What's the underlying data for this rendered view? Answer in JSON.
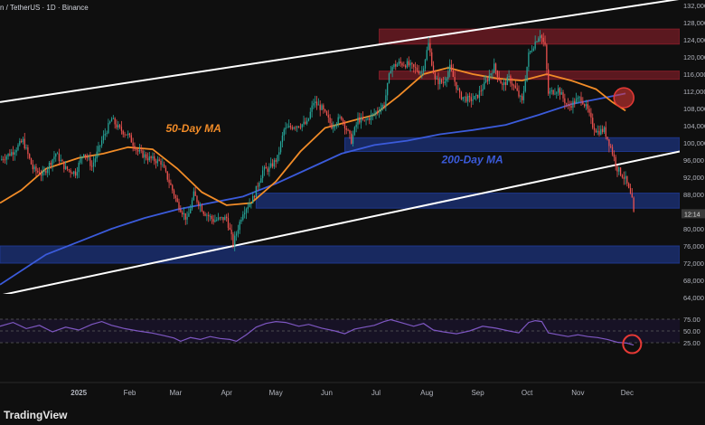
{
  "header": {
    "symbol_text": "n / TetherUS · 1D · Binance"
  },
  "watermark": "TradingView",
  "colors": {
    "background": "#0f0f0f",
    "up": "#26a69a",
    "down": "#ef5350",
    "ma50": "#f28c28",
    "ma200": "#3b5bdb",
    "channel": "#ffffff",
    "resistance_zone": "#8b1e2a",
    "support_zone": "#1f3a93",
    "rsi_line": "#7e57c2",
    "highlight_circle": "#e53935"
  },
  "chart_data": {
    "type": "candlestick",
    "timeframe": "1D",
    "y_range": [
      60000,
      132000
    ],
    "y_ticks": [
      "132,000",
      "128,000",
      "124,000",
      "120,000",
      "116,000",
      "112,000",
      "108,000",
      "104,000",
      "100,000",
      "96,000",
      "92,000",
      "88,000",
      "84,000",
      "80,000",
      "76,000",
      "72,000",
      "68,000",
      "64,000"
    ],
    "current_price_tag": "12:14",
    "x_ticks": [
      "2025",
      "Feb",
      "Mar",
      "Apr",
      "May",
      "Jun",
      "Jul",
      "Aug",
      "Sep",
      "Oct",
      "Nov",
      "Dec"
    ],
    "x_tick_days": [
      0,
      31,
      59,
      90,
      120,
      151,
      181,
      212,
      243,
      273,
      304,
      334
    ],
    "x_range_days": [
      -48,
      366
    ],
    "price_points": [
      [
        -48,
        96000
      ],
      [
        -40,
        98000
      ],
      [
        -34,
        100500
      ],
      [
        -28,
        94000
      ],
      [
        -22,
        92500
      ],
      [
        -14,
        97500
      ],
      [
        -8,
        94000
      ],
      [
        -2,
        93000
      ],
      [
        3,
        98000
      ],
      [
        8,
        94500
      ],
      [
        14,
        100500
      ],
      [
        20,
        105500
      ],
      [
        24,
        103500
      ],
      [
        30,
        101800
      ],
      [
        36,
        98000
      ],
      [
        42,
        96500
      ],
      [
        50,
        95500
      ],
      [
        56,
        90000
      ],
      [
        60,
        86000
      ],
      [
        66,
        82000
      ],
      [
        70,
        88000
      ],
      [
        76,
        84000
      ],
      [
        82,
        82000
      ],
      [
        90,
        82500
      ],
      [
        94,
        76500
      ],
      [
        100,
        84000
      ],
      [
        106,
        87000
      ],
      [
        112,
        93500
      ],
      [
        116,
        94000
      ],
      [
        121,
        96500
      ],
      [
        125,
        103000
      ],
      [
        131,
        104000
      ],
      [
        139,
        104500
      ],
      [
        143,
        109500
      ],
      [
        148,
        108000
      ],
      [
        154,
        104000
      ],
      [
        160,
        106000
      ],
      [
        166,
        100500
      ],
      [
        170,
        105500
      ],
      [
        174,
        105000
      ],
      [
        180,
        106800
      ],
      [
        186,
        109000
      ],
      [
        190,
        117500
      ],
      [
        195,
        118500
      ],
      [
        200,
        118300
      ],
      [
        205,
        117200
      ],
      [
        209,
        116500
      ],
      [
        213,
        123000
      ],
      [
        217,
        114500
      ],
      [
        222,
        114000
      ],
      [
        226,
        117500
      ],
      [
        232,
        111000
      ],
      [
        238,
        110000
      ],
      [
        242,
        110500
      ],
      [
        247,
        113500
      ],
      [
        253,
        117800
      ],
      [
        258,
        113200
      ],
      [
        262,
        115000
      ],
      [
        266,
        112500
      ],
      [
        270,
        109500
      ],
      [
        274,
        120500
      ],
      [
        278,
        123500
      ],
      [
        281,
        125500
      ],
      [
        284,
        122300
      ],
      [
        286,
        111500
      ],
      [
        292,
        112500
      ],
      [
        298,
        108300
      ],
      [
        302,
        109600
      ],
      [
        306,
        110500
      ],
      [
        310,
        107500
      ],
      [
        313,
        104000
      ],
      [
        316,
        102600
      ],
      [
        320,
        103000
      ],
      [
        324,
        99000
      ],
      [
        328,
        94000
      ],
      [
        333,
        91500
      ],
      [
        337,
        86500
      ],
      [
        338,
        83500
      ]
    ],
    "ma50_points": [
      [
        -48,
        86000
      ],
      [
        -35,
        89000
      ],
      [
        -20,
        94000
      ],
      [
        0,
        96500
      ],
      [
        15,
        97500
      ],
      [
        30,
        99000
      ],
      [
        45,
        98500
      ],
      [
        60,
        94000
      ],
      [
        75,
        88500
      ],
      [
        90,
        85500
      ],
      [
        105,
        86000
      ],
      [
        120,
        91000
      ],
      [
        135,
        98000
      ],
      [
        150,
        103500
      ],
      [
        165,
        105000
      ],
      [
        180,
        106500
      ],
      [
        195,
        111000
      ],
      [
        210,
        116000
      ],
      [
        225,
        117500
      ],
      [
        240,
        116000
      ],
      [
        255,
        115000
      ],
      [
        270,
        114500
      ],
      [
        285,
        116000
      ],
      [
        300,
        114500
      ],
      [
        315,
        112500
      ],
      [
        325,
        109500
      ],
      [
        333,
        107500
      ]
    ],
    "ma200_points": [
      [
        -48,
        67000
      ],
      [
        -20,
        74000
      ],
      [
        0,
        77000
      ],
      [
        20,
        80000
      ],
      [
        40,
        82500
      ],
      [
        60,
        84500
      ],
      [
        80,
        86000
      ],
      [
        100,
        87500
      ],
      [
        120,
        90500
      ],
      [
        140,
        94000
      ],
      [
        160,
        97500
      ],
      [
        180,
        99500
      ],
      [
        200,
        100500
      ],
      [
        220,
        102000
      ],
      [
        240,
        103000
      ],
      [
        260,
        104200
      ],
      [
        280,
        106500
      ],
      [
        300,
        109000
      ],
      [
        320,
        110500
      ],
      [
        333,
        111500
      ]
    ],
    "channel_upper": [
      [
        -48,
        109500
      ],
      [
        366,
        133500
      ]
    ],
    "channel_lower": [
      [
        -48,
        64500
      ],
      [
        366,
        98000
      ]
    ],
    "zones": [
      {
        "name": "resistance-upper",
        "kind": "resistance",
        "from_day": 183,
        "to_day": 366,
        "y_low": 123000,
        "y_high": 126500
      },
      {
        "name": "resistance-lower",
        "kind": "resistance",
        "from_day": 183,
        "to_day": 366,
        "y_low": 114800,
        "y_high": 116700
      },
      {
        "name": "support-mid",
        "kind": "support",
        "from_day": 162,
        "to_day": 366,
        "y_low": 98000,
        "y_high": 101200
      },
      {
        "name": "support-current",
        "kind": "support",
        "from_day": 108,
        "to_day": 366,
        "y_low": 84800,
        "y_high": 88300
      },
      {
        "name": "support-low",
        "kind": "support",
        "from_day": -48,
        "to_day": 366,
        "y_low": 72000,
        "y_high": 76000
      }
    ],
    "annotations": [
      {
        "text": "50-Day MA",
        "color": "#f28c28",
        "day": 53,
        "price": 102500
      },
      {
        "text": "200-Day MA",
        "color": "#3b5bdb",
        "day": 221,
        "price": 95300
      }
    ],
    "cross_circle": {
      "day": 332,
      "price": 110500
    },
    "rsi": {
      "y_range": [
        0,
        100
      ],
      "y_ticks": [
        "75.00",
        "50.00",
        "25.00"
      ],
      "tick_values": [
        75,
        50,
        25
      ],
      "points": [
        [
          -48,
          60
        ],
        [
          -40,
          68
        ],
        [
          -32,
          55
        ],
        [
          -24,
          62
        ],
        [
          -16,
          48
        ],
        [
          -8,
          58
        ],
        [
          0,
          52
        ],
        [
          8,
          64
        ],
        [
          14,
          70
        ],
        [
          20,
          62
        ],
        [
          28,
          55
        ],
        [
          36,
          50
        ],
        [
          44,
          46
        ],
        [
          52,
          40
        ],
        [
          58,
          35
        ],
        [
          62,
          28
        ],
        [
          68,
          36
        ],
        [
          74,
          32
        ],
        [
          80,
          38
        ],
        [
          86,
          34
        ],
        [
          92,
          32
        ],
        [
          96,
          28
        ],
        [
          102,
          42
        ],
        [
          108,
          58
        ],
        [
          114,
          66
        ],
        [
          120,
          70
        ],
        [
          126,
          68
        ],
        [
          134,
          60
        ],
        [
          140,
          64
        ],
        [
          148,
          56
        ],
        [
          156,
          50
        ],
        [
          162,
          44
        ],
        [
          168,
          54
        ],
        [
          174,
          58
        ],
        [
          180,
          62
        ],
        [
          186,
          70
        ],
        [
          190,
          74
        ],
        [
          196,
          68
        ],
        [
          204,
          60
        ],
        [
          210,
          66
        ],
        [
          216,
          52
        ],
        [
          222,
          48
        ],
        [
          230,
          44
        ],
        [
          238,
          50
        ],
        [
          246,
          60
        ],
        [
          254,
          56
        ],
        [
          262,
          50
        ],
        [
          268,
          46
        ],
        [
          274,
          68
        ],
        [
          278,
          72
        ],
        [
          282,
          70
        ],
        [
          286,
          46
        ],
        [
          292,
          42
        ],
        [
          298,
          38
        ],
        [
          304,
          42
        ],
        [
          310,
          38
        ],
        [
          316,
          36
        ],
        [
          322,
          32
        ],
        [
          328,
          26
        ],
        [
          334,
          24
        ],
        [
          338,
          20
        ]
      ],
      "circle": {
        "day": 337,
        "value": 22
      }
    }
  }
}
